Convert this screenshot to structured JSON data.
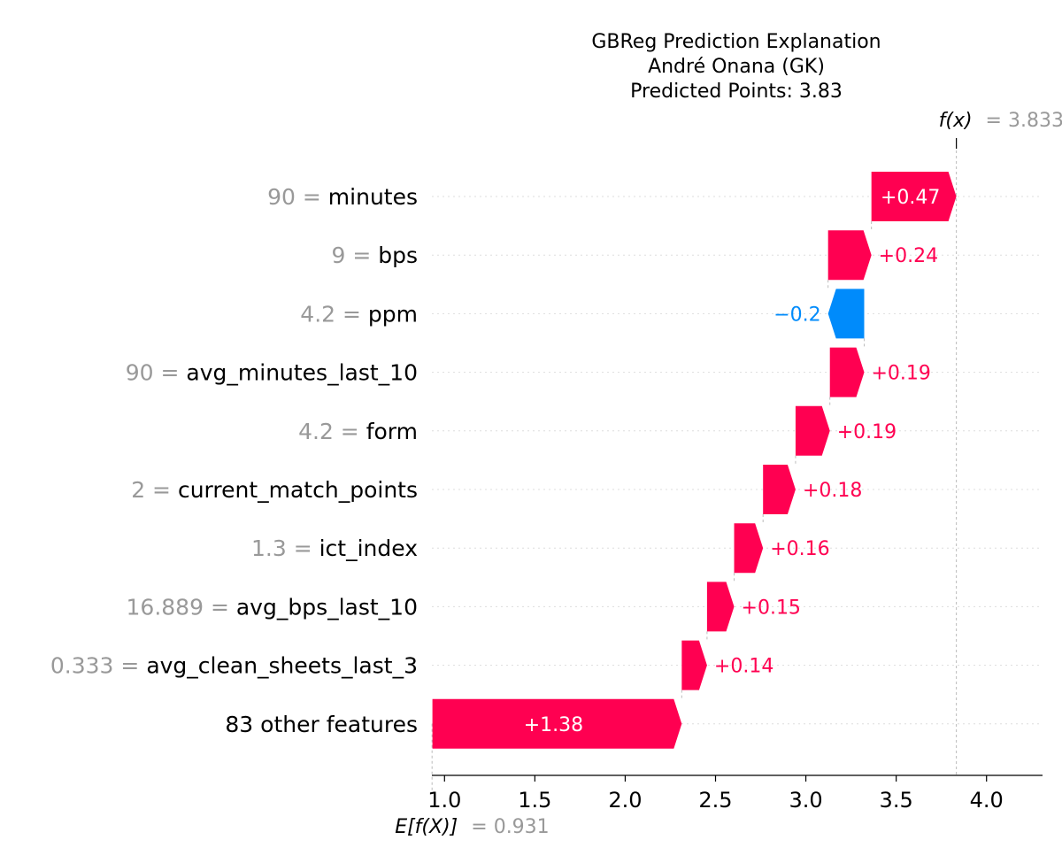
{
  "chart_data": {
    "type": "waterfall",
    "title": "GBReg Prediction Explanation",
    "subtitle": "André Onana (GK)",
    "subtitle2": "Predicted Points: 3.83",
    "fx_label": "f(x)",
    "fx_value": "= 3.833",
    "ex_label": "E[f(X)]",
    "ex_value": "= 0.931",
    "base_value": 0.931,
    "final_value": 3.833,
    "xlim": [
      0.93,
      4.31
    ],
    "xticks": [
      1.0,
      1.5,
      2.0,
      2.5,
      3.0,
      3.5,
      4.0
    ],
    "xtick_labels": [
      "1.0",
      "1.5",
      "2.0",
      "2.5",
      "3.0",
      "3.5",
      "4.0"
    ],
    "colors": {
      "positive": "#ff0051",
      "negative": "#008bfb",
      "value_text": "#999999"
    },
    "features": [
      {
        "value": "90",
        "name": "minutes",
        "contribution": 0.47,
        "label": "+0.47"
      },
      {
        "value": "9",
        "name": "bps",
        "contribution": 0.24,
        "label": "+0.24"
      },
      {
        "value": "4.2",
        "name": "ppm",
        "contribution": -0.2,
        "label": "−0.2"
      },
      {
        "value": "90",
        "name": "avg_minutes_last_10",
        "contribution": 0.19,
        "label": "+0.19"
      },
      {
        "value": "4.2",
        "name": "form",
        "contribution": 0.19,
        "label": "+0.19"
      },
      {
        "value": "2",
        "name": "current_match_points",
        "contribution": 0.18,
        "label": "+0.18"
      },
      {
        "value": "1.3",
        "name": "ict_index",
        "contribution": 0.16,
        "label": "+0.16"
      },
      {
        "value": "16.889",
        "name": "avg_bps_last_10",
        "contribution": 0.15,
        "label": "+0.15"
      },
      {
        "value": "0.333",
        "name": "avg_clean_sheets_last_3",
        "contribution": 0.14,
        "label": "+0.14"
      },
      {
        "value": "",
        "name": "83 other features",
        "contribution": 1.38,
        "label": "+1.38"
      }
    ]
  }
}
